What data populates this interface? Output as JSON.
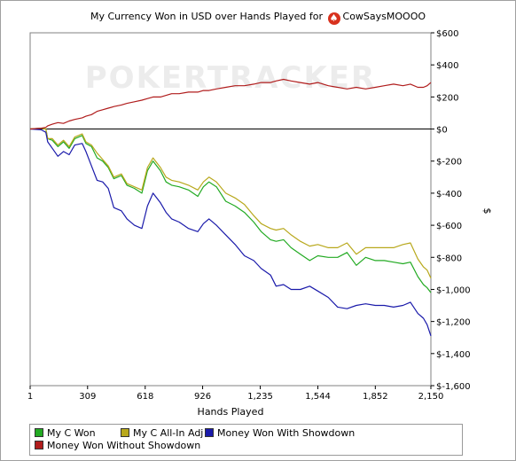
{
  "chart_data": {
    "type": "line",
    "title": "My Currency Won in USD over Hands Played for",
    "title_player": "CowSaysMOOOO",
    "watermark": "POKERTRACKER",
    "xlabel": "Hands Played",
    "ylabel": "$",
    "xlim": [
      1,
      2150
    ],
    "ylim": [
      -1600,
      600
    ],
    "x_ticks": [
      1,
      309,
      618,
      926,
      1235,
      1544,
      1852,
      2150
    ],
    "x_tick_labels": [
      "1",
      "309",
      "618",
      "926",
      "1,235",
      "1,544",
      "1,852",
      "2,150"
    ],
    "y_ticks": [
      600,
      400,
      200,
      0,
      -200,
      -400,
      -600,
      -800,
      -1000,
      -1200,
      -1400,
      -1600
    ],
    "y_tick_labels": [
      "$600",
      "$400",
      "$200",
      "$0",
      "$-200",
      "$-400",
      "$-600",
      "$-800",
      "$-1,000",
      "$-1,200",
      "$-1,400",
      "$-1,600"
    ],
    "legend_position": "bottom",
    "series": [
      {
        "name": "My C Won",
        "color": "#22aa22",
        "points": [
          [
            1,
            0
          ],
          [
            60,
            5
          ],
          [
            85,
            0
          ],
          [
            95,
            -60
          ],
          [
            120,
            -70
          ],
          [
            150,
            -110
          ],
          [
            180,
            -80
          ],
          [
            210,
            -120
          ],
          [
            240,
            -60
          ],
          [
            280,
            -40
          ],
          [
            300,
            -90
          ],
          [
            330,
            -110
          ],
          [
            360,
            -180
          ],
          [
            390,
            -200
          ],
          [
            420,
            -240
          ],
          [
            450,
            -310
          ],
          [
            490,
            -290
          ],
          [
            520,
            -350
          ],
          [
            560,
            -370
          ],
          [
            600,
            -400
          ],
          [
            630,
            -260
          ],
          [
            660,
            -200
          ],
          [
            700,
            -260
          ],
          [
            730,
            -330
          ],
          [
            760,
            -350
          ],
          [
            800,
            -360
          ],
          [
            850,
            -380
          ],
          [
            900,
            -420
          ],
          [
            930,
            -360
          ],
          [
            960,
            -330
          ],
          [
            1000,
            -360
          ],
          [
            1050,
            -450
          ],
          [
            1100,
            -480
          ],
          [
            1150,
            -520
          ],
          [
            1200,
            -580
          ],
          [
            1240,
            -640
          ],
          [
            1290,
            -690
          ],
          [
            1320,
            -700
          ],
          [
            1360,
            -690
          ],
          [
            1400,
            -740
          ],
          [
            1450,
            -780
          ],
          [
            1500,
            -820
          ],
          [
            1544,
            -790
          ],
          [
            1600,
            -800
          ],
          [
            1650,
            -800
          ],
          [
            1700,
            -770
          ],
          [
            1750,
            -850
          ],
          [
            1800,
            -800
          ],
          [
            1852,
            -820
          ],
          [
            1900,
            -820
          ],
          [
            1950,
            -830
          ],
          [
            2000,
            -840
          ],
          [
            2040,
            -830
          ],
          [
            2080,
            -920
          ],
          [
            2110,
            -970
          ],
          [
            2130,
            -990
          ],
          [
            2150,
            -1020
          ]
        ]
      },
      {
        "name": "My C All-In Adj",
        "color": "#b8a81c",
        "points": [
          [
            1,
            0
          ],
          [
            60,
            5
          ],
          [
            85,
            0
          ],
          [
            95,
            -60
          ],
          [
            120,
            -60
          ],
          [
            150,
            -100
          ],
          [
            180,
            -70
          ],
          [
            210,
            -110
          ],
          [
            240,
            -50
          ],
          [
            280,
            -30
          ],
          [
            300,
            -80
          ],
          [
            330,
            -100
          ],
          [
            360,
            -150
          ],
          [
            390,
            -190
          ],
          [
            420,
            -230
          ],
          [
            450,
            -300
          ],
          [
            490,
            -280
          ],
          [
            520,
            -340
          ],
          [
            560,
            -360
          ],
          [
            600,
            -380
          ],
          [
            630,
            -240
          ],
          [
            660,
            -180
          ],
          [
            700,
            -240
          ],
          [
            730,
            -300
          ],
          [
            760,
            -320
          ],
          [
            800,
            -330
          ],
          [
            850,
            -350
          ],
          [
            900,
            -380
          ],
          [
            930,
            -330
          ],
          [
            960,
            -300
          ],
          [
            1000,
            -330
          ],
          [
            1050,
            -400
          ],
          [
            1100,
            -430
          ],
          [
            1150,
            -470
          ],
          [
            1200,
            -540
          ],
          [
            1240,
            -590
          ],
          [
            1290,
            -620
          ],
          [
            1320,
            -630
          ],
          [
            1360,
            -620
          ],
          [
            1400,
            -660
          ],
          [
            1450,
            -700
          ],
          [
            1500,
            -730
          ],
          [
            1544,
            -720
          ],
          [
            1600,
            -740
          ],
          [
            1650,
            -740
          ],
          [
            1700,
            -710
          ],
          [
            1750,
            -780
          ],
          [
            1800,
            -740
          ],
          [
            1852,
            -740
          ],
          [
            1900,
            -740
          ],
          [
            1950,
            -740
          ],
          [
            2000,
            -720
          ],
          [
            2040,
            -710
          ],
          [
            2080,
            -810
          ],
          [
            2110,
            -860
          ],
          [
            2130,
            -880
          ],
          [
            2150,
            -930
          ]
        ]
      },
      {
        "name": "Money Won With Showdown",
        "color": "#1a1aaa",
        "points": [
          [
            1,
            0
          ],
          [
            60,
            -5
          ],
          [
            85,
            -20
          ],
          [
            95,
            -80
          ],
          [
            120,
            -120
          ],
          [
            150,
            -170
          ],
          [
            180,
            -140
          ],
          [
            210,
            -160
          ],
          [
            240,
            -100
          ],
          [
            280,
            -90
          ],
          [
            300,
            -140
          ],
          [
            330,
            -230
          ],
          [
            360,
            -320
          ],
          [
            390,
            -330
          ],
          [
            420,
            -370
          ],
          [
            450,
            -490
          ],
          [
            490,
            -510
          ],
          [
            520,
            -560
          ],
          [
            560,
            -600
          ],
          [
            600,
            -620
          ],
          [
            630,
            -480
          ],
          [
            660,
            -400
          ],
          [
            700,
            -460
          ],
          [
            730,
            -520
          ],
          [
            760,
            -560
          ],
          [
            800,
            -580
          ],
          [
            850,
            -620
          ],
          [
            900,
            -640
          ],
          [
            930,
            -590
          ],
          [
            960,
            -560
          ],
          [
            1000,
            -600
          ],
          [
            1050,
            -660
          ],
          [
            1100,
            -720
          ],
          [
            1150,
            -790
          ],
          [
            1200,
            -820
          ],
          [
            1240,
            -870
          ],
          [
            1290,
            -910
          ],
          [
            1320,
            -980
          ],
          [
            1360,
            -970
          ],
          [
            1400,
            -1000
          ],
          [
            1450,
            -1000
          ],
          [
            1500,
            -980
          ],
          [
            1544,
            -1010
          ],
          [
            1600,
            -1050
          ],
          [
            1650,
            -1110
          ],
          [
            1700,
            -1120
          ],
          [
            1750,
            -1100
          ],
          [
            1800,
            -1090
          ],
          [
            1852,
            -1100
          ],
          [
            1900,
            -1100
          ],
          [
            1950,
            -1110
          ],
          [
            2000,
            -1100
          ],
          [
            2040,
            -1080
          ],
          [
            2080,
            -1150
          ],
          [
            2110,
            -1180
          ],
          [
            2130,
            -1220
          ],
          [
            2150,
            -1290
          ]
        ]
      },
      {
        "name": "Money Won Without Showdown",
        "color": "#b01c1c",
        "points": [
          [
            1,
            0
          ],
          [
            60,
            5
          ],
          [
            85,
            10
          ],
          [
            95,
            20
          ],
          [
            120,
            30
          ],
          [
            150,
            40
          ],
          [
            180,
            35
          ],
          [
            210,
            50
          ],
          [
            240,
            60
          ],
          [
            280,
            70
          ],
          [
            300,
            80
          ],
          [
            330,
            90
          ],
          [
            360,
            110
          ],
          [
            390,
            120
          ],
          [
            420,
            130
          ],
          [
            450,
            140
          ],
          [
            490,
            150
          ],
          [
            520,
            160
          ],
          [
            560,
            170
          ],
          [
            600,
            180
          ],
          [
            630,
            190
          ],
          [
            660,
            200
          ],
          [
            700,
            200
          ],
          [
            730,
            210
          ],
          [
            760,
            220
          ],
          [
            800,
            220
          ],
          [
            850,
            230
          ],
          [
            900,
            230
          ],
          [
            930,
            240
          ],
          [
            960,
            240
          ],
          [
            1000,
            250
          ],
          [
            1050,
            260
          ],
          [
            1100,
            270
          ],
          [
            1150,
            270
          ],
          [
            1200,
            280
          ],
          [
            1240,
            290
          ],
          [
            1290,
            290
          ],
          [
            1320,
            300
          ],
          [
            1360,
            310
          ],
          [
            1400,
            300
          ],
          [
            1450,
            290
          ],
          [
            1500,
            280
          ],
          [
            1544,
            290
          ],
          [
            1600,
            270
          ],
          [
            1650,
            260
          ],
          [
            1700,
            250
          ],
          [
            1750,
            260
          ],
          [
            1800,
            250
          ],
          [
            1852,
            260
          ],
          [
            1900,
            270
          ],
          [
            1950,
            280
          ],
          [
            2000,
            270
          ],
          [
            2040,
            280
          ],
          [
            2080,
            260
          ],
          [
            2110,
            260
          ],
          [
            2130,
            270
          ],
          [
            2150,
            290
          ]
        ]
      }
    ]
  }
}
